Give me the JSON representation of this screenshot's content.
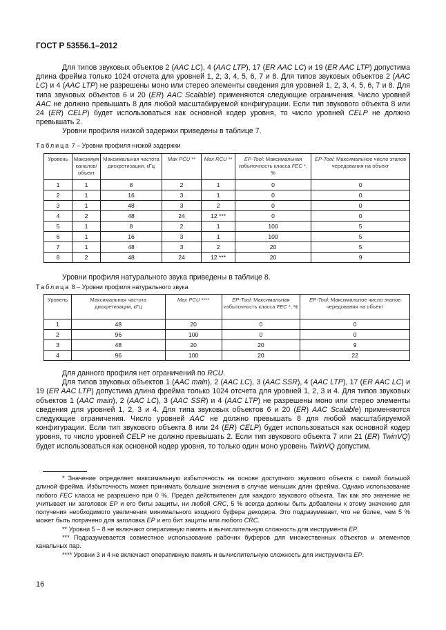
{
  "header": {
    "doc_id": "ГОСТ Р 53556.1–2012"
  },
  "para1": [
    {
      "t": "Для типов звуковых объектов 2 ("
    },
    {
      "t": "AAC LC",
      "i": true
    },
    {
      "t": "), 4 ("
    },
    {
      "t": "AAC LTP",
      "i": true
    },
    {
      "t": "), 17 ("
    },
    {
      "t": "ER AAC LC",
      "i": true
    },
    {
      "t": ") и 19 ("
    },
    {
      "t": "ER AAC LTP",
      "i": true
    },
    {
      "t": ") допустима длина фрейма только 1024 отсчета для уровней 1, 2, 3, 4, 5, 6, 7 и 8. Для типов звуковых объектов 2 ("
    },
    {
      "t": "AAC LC",
      "i": true
    },
    {
      "t": ") и 4 ("
    },
    {
      "t": "AAC LTP",
      "i": true
    },
    {
      "t": ") не разрешены моно или стерео элементы сведения для уровней 1, 2, 3, 4, 5, 6, 7 и 8. Для типа звуковых объектов 6 и 20 ("
    },
    {
      "t": "ER",
      "i": true
    },
    {
      "t": ") "
    },
    {
      "t": "AAC Scalable",
      "i": true
    },
    {
      "t": ") применяются следующие ограничения. Число уровней "
    },
    {
      "t": "AAC",
      "i": true
    },
    {
      "t": " не должно превышать 8 для любой масштабируемой конфигурации. Если тип звукового объекта 8 или 24 ("
    },
    {
      "t": "ER",
      "i": true
    },
    {
      "t": ") "
    },
    {
      "t": "CELP",
      "i": true
    },
    {
      "t": ") будет использоваться как основной кодер уровня, то число уровней "
    },
    {
      "t": "CELP",
      "i": true
    },
    {
      "t": " не должно превышать 2."
    }
  ],
  "para2": [
    {
      "t": "Уровни профиля низкой задержки приведены в таблице 7."
    }
  ],
  "table7": {
    "caption_word": "Таблица",
    "caption_rest": " 7 – Уровни профиля низкой задержки",
    "headers": [
      [
        {
          "t": "Уровень"
        }
      ],
      [
        {
          "t": "Максимум каналов/ объект"
        }
      ],
      [
        {
          "t": "Максимальная частота дискретизации, кГц"
        }
      ],
      [
        {
          "t": "Max PCU",
          "i": true
        },
        {
          "t": " **"
        }
      ],
      [
        {
          "t": "Max RCU",
          "i": true
        },
        {
          "t": " **"
        }
      ],
      [
        {
          "t": "EP-Tool",
          "i": true
        },
        {
          "t": ": Максимальная избыточность класса "
        },
        {
          "t": "FEC",
          "i": true
        },
        {
          "t": " *, %"
        }
      ],
      [
        {
          "t": "EP-Tool",
          "i": true
        },
        {
          "t": ": Максимальное число этапов чередования на объект"
        }
      ]
    ],
    "rows": [
      [
        "1",
        "1",
        "8",
        "2",
        "1",
        "0",
        "0"
      ],
      [
        "2",
        "1",
        "16",
        "3",
        "1",
        "0",
        "0"
      ],
      [
        "3",
        "1",
        "48",
        "3",
        "2",
        "0",
        "0"
      ],
      [
        "4",
        "2",
        "48",
        "24",
        "12 ***",
        "0",
        "0"
      ],
      [
        "5",
        "1",
        "8",
        "2",
        "1",
        "100",
        "5"
      ],
      [
        "6",
        "1",
        "16",
        "3",
        "1",
        "100",
        "5"
      ],
      [
        "7",
        "1",
        "48",
        "3",
        "2",
        "20",
        "5"
      ],
      [
        "8",
        "2",
        "48",
        "24",
        "12 ***",
        "20",
        "9"
      ]
    ]
  },
  "para3": [
    {
      "t": "Уровни профиля натурального звука приведены в таблице 8."
    }
  ],
  "table8": {
    "caption_word": "Таблица",
    "caption_rest": " 8 – Уровни профиля натурального звука",
    "headers": [
      [
        {
          "t": "Уровень"
        }
      ],
      [
        {
          "t": "Максимальная частота дискретизации, кГц"
        }
      ],
      [
        {
          "t": "Max PCU",
          "i": true
        },
        {
          "t": " ****"
        }
      ],
      [
        {
          "t": "EP-Tool",
          "i": true
        },
        {
          "t": ": Максимальная избыточность класса "
        },
        {
          "t": "FEC",
          "i": true
        },
        {
          "t": " *, %"
        }
      ],
      [
        {
          "t": "EP-Tool",
          "i": true
        },
        {
          "t": ": Максимальное число этапов чередования на объект"
        }
      ]
    ],
    "rows": [
      [
        "1",
        "48",
        "20",
        "0",
        "0"
      ],
      [
        "2",
        "96",
        "100",
        "0",
        "0"
      ],
      [
        "3",
        "48",
        "20",
        "20",
        "9"
      ],
      [
        "4",
        "96",
        "100",
        "20",
        "22"
      ]
    ]
  },
  "para4": [
    {
      "t": "Для данного профиля нет ограничений по "
    },
    {
      "t": "RCU",
      "i": true
    },
    {
      "t": "."
    }
  ],
  "para5": [
    {
      "t": "Для типов звуковых объектов 1 ("
    },
    {
      "t": "AAC main",
      "i": true
    },
    {
      "t": "), 2 ("
    },
    {
      "t": "AAC LC",
      "i": true
    },
    {
      "t": "), 3 ("
    },
    {
      "t": "AAC SSR",
      "i": true
    },
    {
      "t": "), 4 ("
    },
    {
      "t": "AAC LTP",
      "i": true
    },
    {
      "t": "), 17 ("
    },
    {
      "t": "ER AAC LC",
      "i": true
    },
    {
      "t": ") и 19 ("
    },
    {
      "t": "ER AAC LTP",
      "i": true
    },
    {
      "t": ") допустима длина фрейма только 1024 отсчета для уровней 1, 2, 3 и 4. Для типов звуковых объектов 1 ("
    },
    {
      "t": "AAC main",
      "i": true
    },
    {
      "t": "), 2 ("
    },
    {
      "t": "AAC LC",
      "i": true
    },
    {
      "t": "), 3 ("
    },
    {
      "t": "AAC SSR",
      "i": true
    },
    {
      "t": ") и 4 ("
    },
    {
      "t": "AAC LTP",
      "i": true
    },
    {
      "t": ") не разрешены моно или стерео элементы сведения для уровней 1, 2, 3 и 4. Для типа звуковых объектов 6 и 20 ("
    },
    {
      "t": "ER",
      "i": true
    },
    {
      "t": ") "
    },
    {
      "t": "AAC Scalable",
      "i": true
    },
    {
      "t": ") применяются следующие ограничения. Число уровней "
    },
    {
      "t": "AAC",
      "i": true
    },
    {
      "t": " не должно превышать 8 для любой масштабируемой конфигурации. Если тип звукового объекта 8 или 24 ("
    },
    {
      "t": "ER",
      "i": true
    },
    {
      "t": ") "
    },
    {
      "t": "CELP",
      "i": true
    },
    {
      "t": ") будет использоваться как основной кодер уровня, то число уровней "
    },
    {
      "t": "CELP",
      "i": true
    },
    {
      "t": " не должно превышать 2. Если тип звукового объекта 7 или 21 ("
    },
    {
      "t": "ER",
      "i": true
    },
    {
      "t": ") "
    },
    {
      "t": "TwinVQ",
      "i": true
    },
    {
      "t": ") будет использоваться как основной кодер уровня, то только один моно уровень "
    },
    {
      "t": "TwinVQ",
      "i": true
    },
    {
      "t": " допустим."
    }
  ],
  "footnotes": [
    [
      {
        "t": "* Значение определяет максимальную избыточность на основе доступного звукового объекта с самой большой длиной фрейма. Избыточность может принимать большие значения в случае меньших длин фрейма. Однако использование любого "
      },
      {
        "t": "FEC",
        "i": true
      },
      {
        "t": " класса не разрешено при 0 %. Предел действителен для каждого звукового объекта. Так как это значение не учитывает ни заголовок "
      },
      {
        "t": "EP",
        "i": true
      },
      {
        "t": " и его биты защиты, ни любой "
      },
      {
        "t": "CRC",
        "i": true
      },
      {
        "t": ", 5 % всегда должны быть добавлены к этому значению для получения необходимого увеличения минимального входного буфера декодера. Это подразумевает, что не более, чем 5 % может быть потрачено для заголовка "
      },
      {
        "t": "EP",
        "i": true
      },
      {
        "t": " и его бит защиты или любого "
      },
      {
        "t": "CRC",
        "i": true
      },
      {
        "t": "."
      }
    ],
    [
      {
        "t": "** Уровни 5 – 8 не включают оперативную память и вычислительную сложность для инструмента "
      },
      {
        "t": "EP",
        "i": true
      },
      {
        "t": "."
      }
    ],
    [
      {
        "t": "*** Подразумевается совместное использование рабочих буферов для множественных объектов и элементов канальных пар."
      }
    ],
    [
      {
        "t": "**** Уровни 3 и 4 не включают оперативную память и вычислительную сложность для инструмента "
      },
      {
        "t": "EP",
        "i": true
      },
      {
        "t": "."
      }
    ]
  ],
  "page_number": "16"
}
